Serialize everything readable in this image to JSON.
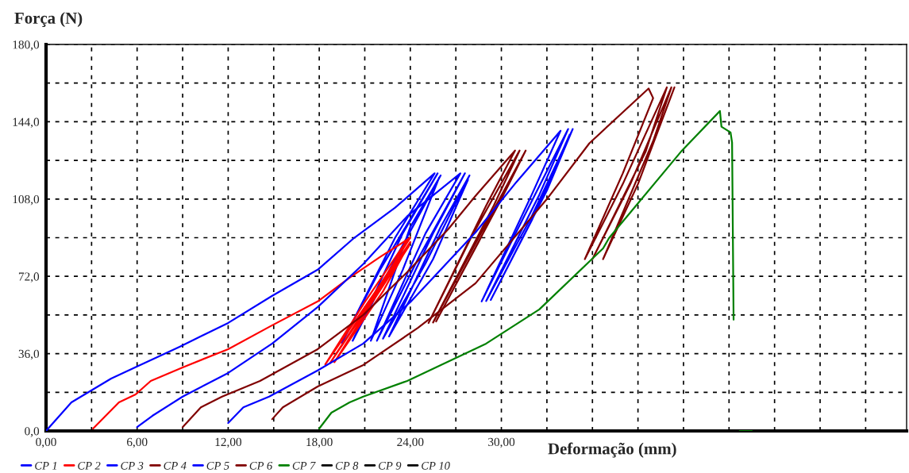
{
  "chart_data": {
    "type": "line",
    "xlabel": "Deformação (mm)",
    "ylabel": "Força (N)",
    "xlim": [
      0,
      56.7
    ],
    "ylim": [
      0,
      180
    ],
    "xticks": [
      {
        "value": 0,
        "label": "0,00"
      },
      {
        "value": 3,
        "label": null
      },
      {
        "value": 6,
        "label": "6,00"
      },
      {
        "value": 9,
        "label": null
      },
      {
        "value": 12,
        "label": "12,00"
      },
      {
        "value": 15,
        "label": null
      },
      {
        "value": 18,
        "label": "18,00"
      },
      {
        "value": 21,
        "label": null
      },
      {
        "value": 24,
        "label": "24,00"
      },
      {
        "value": 27,
        "label": null
      },
      {
        "value": 30,
        "label": "30,00"
      },
      {
        "value": 33,
        "label": null
      },
      {
        "value": 36,
        "label": null
      },
      {
        "value": 39,
        "label": null
      },
      {
        "value": 42,
        "label": null
      },
      {
        "value": 45,
        "label": null
      },
      {
        "value": 48,
        "label": null
      },
      {
        "value": 51,
        "label": null
      },
      {
        "value": 54,
        "label": null
      }
    ],
    "yticks": [
      {
        "value": 0,
        "label": "0,0"
      },
      {
        "value": 18,
        "label": null
      },
      {
        "value": 36,
        "label": "36,0"
      },
      {
        "value": 54,
        "label": null
      },
      {
        "value": 72,
        "label": "72,0"
      },
      {
        "value": 90,
        "label": null
      },
      {
        "value": 108,
        "label": "108,0"
      },
      {
        "value": 126,
        "label": null
      },
      {
        "value": 144,
        "label": "144,0"
      },
      {
        "value": 162,
        "label": null
      },
      {
        "value": 180,
        "label": "180,0"
      }
    ],
    "grid": true,
    "legend": "bottom",
    "line_style": "solid",
    "marker": "none",
    "series": [
      {
        "name": "CP 1",
        "color": "#0000ff",
        "x": [
          0,
          1.67,
          4.29,
          6,
          8.8,
          12,
          14.9,
          17.9,
          20.3,
          23,
          25.6,
          23,
          19.5,
          22,
          25.8,
          23.5,
          20.2,
          23,
          26,
          24,
          21.4,
          23.5,
          25.9
        ],
        "values": [
          0,
          13.3,
          24.4,
          30,
          39.2,
          50.3,
          62.9,
          75.1,
          89.9,
          104,
          120,
          90,
          41,
          75,
          120,
          92,
          42,
          80,
          119,
          95,
          42,
          75,
          118
        ]
      },
      {
        "name": "CP 2",
        "color": "#ff0000",
        "x": [
          3.1,
          4.8,
          5.9,
          6.9,
          9,
          12,
          14.9,
          17.9,
          20,
          22,
          24,
          22,
          18.4,
          21,
          23.8,
          22,
          18.7,
          21.5,
          24,
          22.2,
          19,
          21.5,
          23.9
        ],
        "values": [
          1.1,
          13.3,
          17,
          23.3,
          29.6,
          38.1,
          49.2,
          60.3,
          71.4,
          81,
          90,
          68,
          31,
          60,
          89,
          66,
          31.5,
          62,
          88,
          65,
          32,
          60,
          86
        ]
      },
      {
        "name": "CP 3",
        "color": "#0000ff",
        "x": [
          6,
          7,
          9,
          12,
          14.9,
          17.9,
          20.9,
          23.8,
          27.3,
          25,
          21.8,
          24.5,
          27.6,
          25.5,
          22.2,
          25,
          27.9,
          26,
          22.6,
          25.5,
          27.8
        ],
        "values": [
          1.8,
          7,
          16,
          27,
          40.7,
          57.7,
          77.7,
          100,
          120,
          92,
          42,
          80,
          120,
          92,
          43,
          78,
          119,
          95,
          44,
          80,
          117
        ]
      },
      {
        "name": "CP 4",
        "color": "#800000",
        "x": [
          9,
          10.2,
          11.6,
          14.1,
          17.9,
          20.9,
          23.8,
          26.5,
          28.3,
          30.9,
          29,
          25.2,
          28,
          31.2,
          29.5,
          25.5,
          28.5,
          31.6,
          30,
          25.7,
          28.5,
          31.4
        ],
        "values": [
          1.8,
          11,
          16,
          23.3,
          38.1,
          54,
          74,
          94,
          109.5,
          130.6,
          105,
          50.3,
          90,
          130.6,
          105,
          50.5,
          90,
          130.6,
          108,
          51,
          88,
          128
        ]
      },
      {
        "name": "CP 5",
        "color": "#0000ff",
        "x": [
          12,
          13,
          14.7,
          17.9,
          20.9,
          24,
          28.3,
          31,
          33.9,
          32,
          28.7,
          31.5,
          34.4,
          32.5,
          29,
          32,
          34.7,
          33,
          29.3,
          32,
          34.5
        ],
        "values": [
          3.7,
          11,
          16,
          28.2,
          40.7,
          60,
          92.5,
          116,
          139.8,
          110,
          60.3,
          100,
          140.6,
          110,
          60.5,
          100,
          140.6,
          112,
          61,
          98,
          138
        ]
      },
      {
        "name": "CP 6",
        "color": "#800000",
        "x": [
          14.9,
          15.6,
          17.9,
          20.9,
          24.5,
          28.3,
          33,
          35.8,
          39.7,
          40,
          38,
          35.5,
          38,
          40.9,
          39.5,
          36,
          38.5,
          41.2,
          40,
          36.7,
          39,
          41.4
        ],
        "values": [
          5.5,
          11,
          20.7,
          30.7,
          48,
          68.8,
          108,
          134,
          159.5,
          155,
          120,
          80,
          115,
          160,
          130,
          80,
          115,
          160,
          135,
          80,
          115,
          160
        ]
      },
      {
        "name": "CP 7",
        "color": "#008000",
        "x": [
          18,
          18.8,
          20,
          20.9,
          23.8,
          29,
          32.5,
          36.7,
          37.1,
          41.9,
          44.4,
          44.5,
          45.1,
          45.2,
          45.3,
          45.5,
          45.7,
          46.5
        ],
        "values": [
          1.1,
          8.5,
          13.3,
          16,
          23.3,
          40.7,
          56.6,
          85,
          89.9,
          130.6,
          149,
          141.7,
          139,
          134.3,
          51.8,
          null,
          0,
          0
        ]
      },
      {
        "name": "CP 8",
        "color": "#000000"
      },
      {
        "name": "CP 9",
        "color": "#000000"
      },
      {
        "name": "CP 10",
        "color": "#000000"
      }
    ]
  }
}
